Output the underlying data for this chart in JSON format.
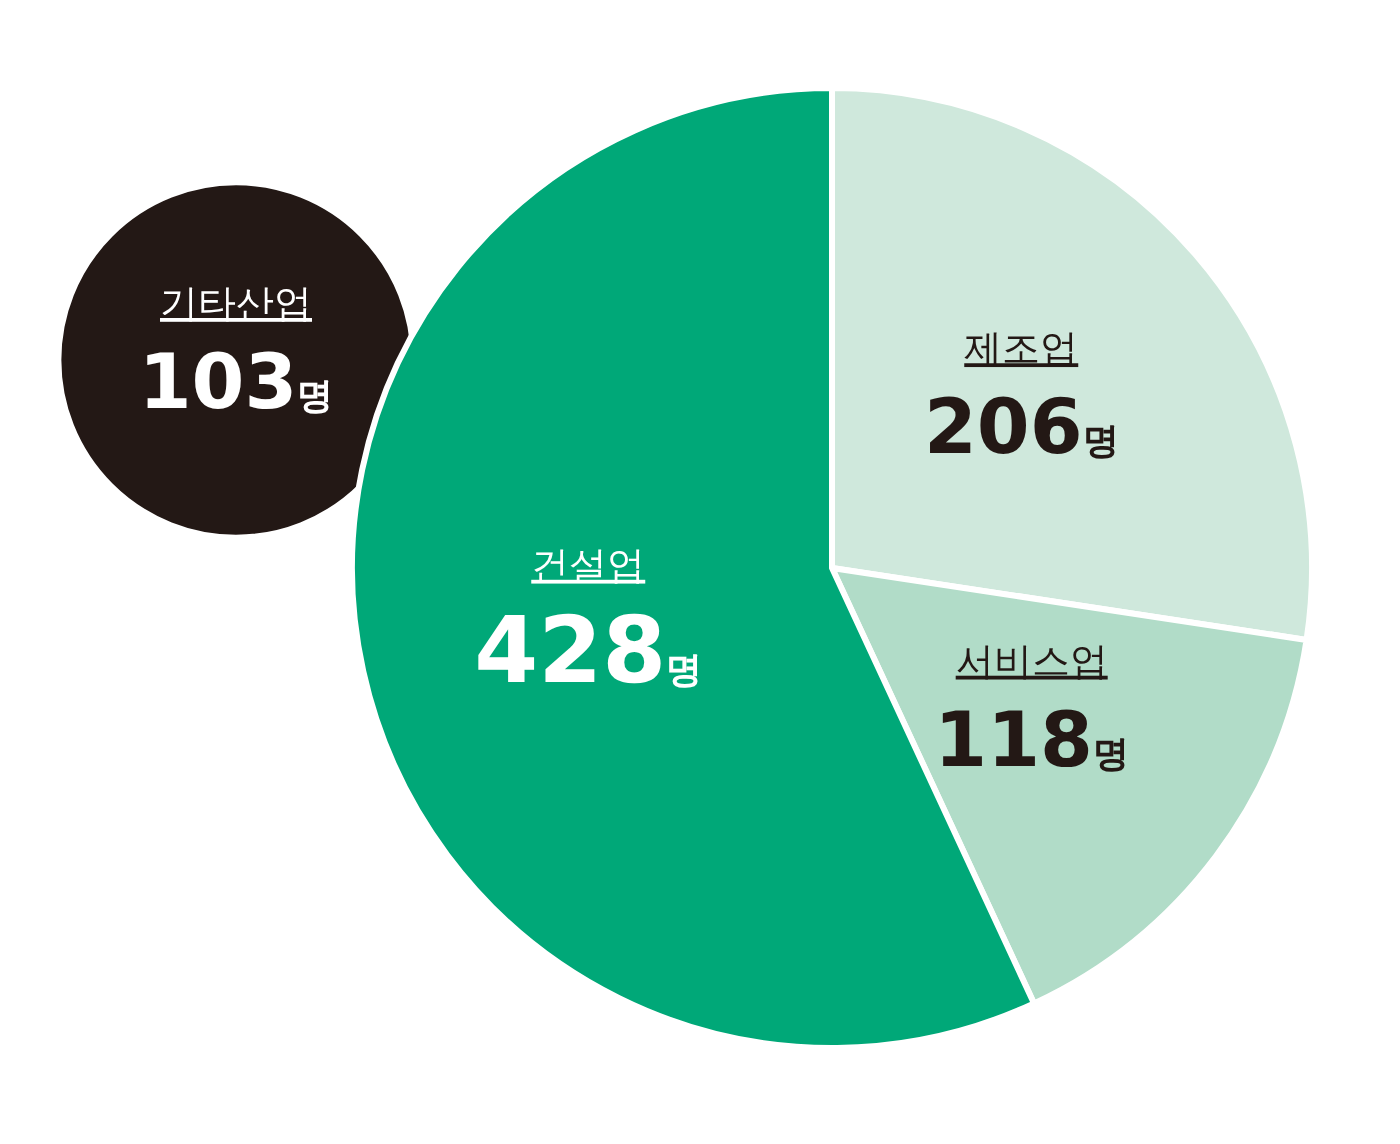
{
  "chart_data": [
    {
      "type": "pie",
      "categories": [
        "제조업",
        "서비스업",
        "건설업"
      ],
      "values": [
        206,
        118,
        428
      ],
      "colors": [
        "#cfe8dc",
        "#b1dcc8",
        "#00a878"
      ],
      "value_labels": [
        "206명",
        "118명",
        "428명"
      ]
    },
    {
      "type": "other",
      "categories": [
        "기타산업"
      ],
      "values": [
        103
      ],
      "colors": [
        "#231815"
      ],
      "value_labels": [
        "103명"
      ]
    }
  ]
}
